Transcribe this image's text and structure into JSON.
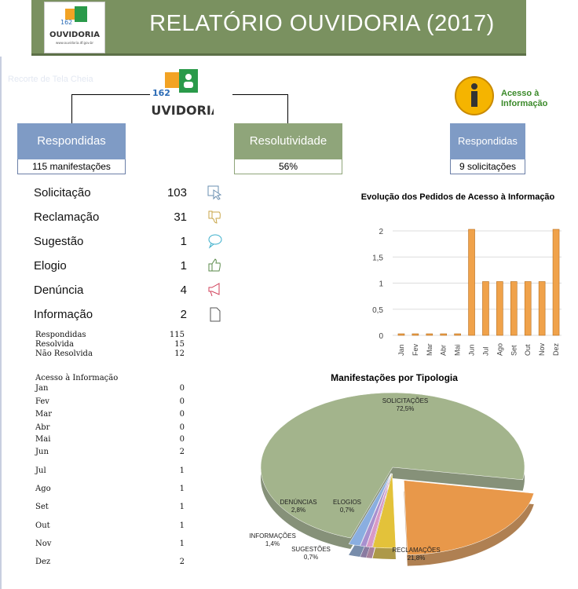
{
  "header": {
    "title": "RELATÓRIO OUVIDORIA (2017)",
    "logo_text": "OUVIDORIA",
    "logo_number": "162",
    "logo_url": "www.ouvidoria.df.gov.br"
  },
  "faint_caption": "Recorte de Tela Cheia",
  "acesso_logo": {
    "line1": "Acesso à",
    "line2": "Informação"
  },
  "kpis": [
    {
      "label": "Respondidas",
      "value": "115 manifestações",
      "color": "#7f9bc5"
    },
    {
      "label": "Resolutividade",
      "value": "56%",
      "color": "#8fa57a"
    },
    {
      "label": "Respondidas",
      "value": "9 solicitações",
      "color": "#7f9bc5"
    }
  ],
  "categories": [
    {
      "label": "Solicitação",
      "value": "103",
      "icon": "cursor-icon"
    },
    {
      "label": "Reclamação",
      "value": "31",
      "icon": "thumbs-down-icon"
    },
    {
      "label": "Sugestão",
      "value": "1",
      "icon": "speech-bubble-icon"
    },
    {
      "label": "Elogio",
      "value": "1",
      "icon": "thumbs-up-icon"
    },
    {
      "label": "Denúncia",
      "value": "4",
      "icon": "megaphone-icon"
    },
    {
      "label": "Informação",
      "value": "2",
      "icon": "document-icon"
    }
  ],
  "status": [
    {
      "label": "Respondidas",
      "value": "115"
    },
    {
      "label": "Resolvida",
      "value": "15"
    },
    {
      "label": "Não Resolvida",
      "value": "12"
    }
  ],
  "acesso_title": "Acesso à Informação",
  "acesso_months": [
    {
      "label": "Jan",
      "value": "0"
    },
    {
      "label": "Fev",
      "value": "0"
    },
    {
      "label": "Mar",
      "value": "0"
    },
    {
      "label": "Abr",
      "value": "0"
    },
    {
      "label": "Mai",
      "value": "0"
    },
    {
      "label": "Jun",
      "value": "2"
    },
    {
      "label": "Jul",
      "value": "1"
    },
    {
      "label": "Ago",
      "value": "1"
    },
    {
      "label": "Set",
      "value": "1"
    },
    {
      "label": "Out",
      "value": "1"
    },
    {
      "label": "Nov",
      "value": "1"
    },
    {
      "label": "Dez",
      "value": "2"
    }
  ],
  "chart_data": [
    {
      "type": "bar",
      "title": "Evolução dos Pedidos de Acesso à Informação",
      "categories": [
        "Jan",
        "Fev",
        "Mar",
        "Abr",
        "Mai",
        "Jun",
        "Jul",
        "Ago",
        "Set",
        "Out",
        "Nov",
        "Dez"
      ],
      "values": [
        0,
        0,
        0,
        0,
        0,
        2,
        1,
        1,
        1,
        1,
        1,
        2
      ],
      "yticks": [
        "0",
        "0,5",
        "1",
        "1,5",
        "2"
      ],
      "ylim": [
        0,
        2
      ],
      "grid": true,
      "color": "#f0a24a"
    },
    {
      "type": "pie",
      "title": "Manifestações por Tipologia",
      "slices": [
        {
          "name": "RECLAMAÇÕES",
          "label": "21,8%",
          "value": 21.8,
          "color": "#e8984a"
        },
        {
          "name": "DENÚNCIAS",
          "label": "2,8%",
          "value": 2.8,
          "color": "#e3c23a"
        },
        {
          "name": "SUGESTÕES",
          "label": "0,7%",
          "value": 0.7,
          "color": "#d99ac7"
        },
        {
          "name": "ELOGIOS",
          "label": "0,7%",
          "value": 0.7,
          "color": "#a890cf"
        },
        {
          "name": "INFORMAÇÕES",
          "label": "1,4%",
          "value": 1.4,
          "color": "#8aaee0"
        },
        {
          "name": "SOLICITAÇÕES",
          "label": "72,5%",
          "value": 72.5,
          "color": "#a3b48c"
        }
      ]
    }
  ]
}
